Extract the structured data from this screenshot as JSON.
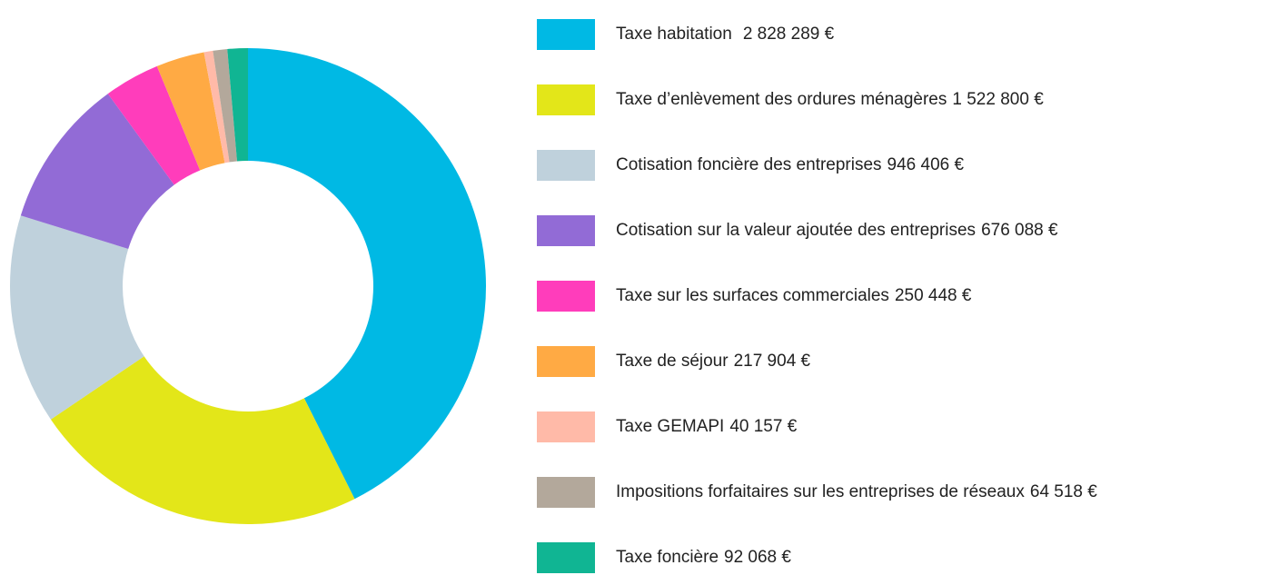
{
  "chart_data": {
    "type": "donut",
    "categories": [
      "Taxe habitation",
      "Taxe d’enlèvement des ordures ménagères",
      "Cotisation foncière des entreprises",
      "Cotisation sur la valeur ajoutée des entreprises",
      "Taxe sur les surfaces commerciales",
      "Taxe de séjour",
      "Taxe GEMAPI",
      "Impositions forfaitaires sur les entreprises de réseaux",
      "Taxe foncière"
    ],
    "values": [
      2828289,
      1522800,
      946406,
      676088,
      250448,
      217904,
      40157,
      64518,
      92068
    ],
    "value_labels": [
      "2 828 289 €",
      "1 522 800 €",
      "946 406 €",
      "676 088 €",
      "250 448 €",
      "217 904 €",
      "40 157 €",
      "64 518 €",
      "92 068 €"
    ],
    "colors": [
      "#00b9e4",
      "#e3e619",
      "#bfd1dc",
      "#926bd6",
      "#ff3dbb",
      "#ffaa44",
      "#ffbaa8",
      "#b3a89b",
      "#10b593"
    ],
    "legend": "right"
  }
}
